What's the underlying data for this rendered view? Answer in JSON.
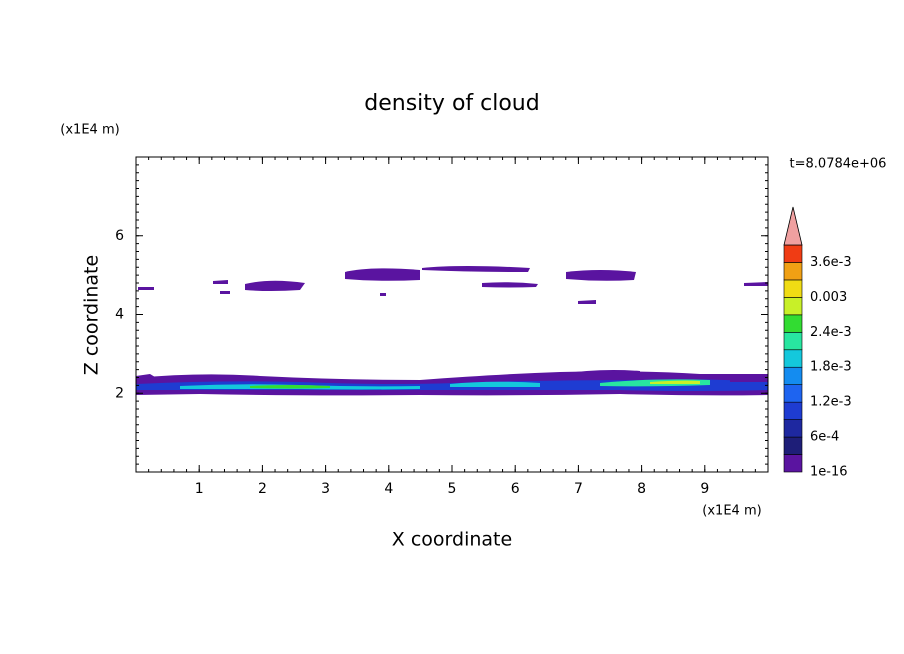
{
  "chart_data": {
    "type": "contour",
    "title": "density of cloud",
    "x_label": "X coordinate",
    "y_label": "Z coordinate",
    "x_unit": "(x1E4 m)",
    "y_unit": "(x1E4 m)",
    "time_label": "t=8.0784e+06",
    "xlim": [
      0,
      10
    ],
    "ylim": [
      0,
      8
    ],
    "xticks": [
      1,
      2,
      3,
      4,
      5,
      6,
      7,
      8,
      9
    ],
    "yticks": [
      2,
      4,
      6
    ],
    "colorbar": {
      "levels": [
        1e-16,
        0.0003,
        0.0006,
        0.0009,
        0.0012,
        0.0015,
        0.0018,
        0.0021,
        0.0024,
        0.0027,
        0.003,
        0.0033,
        0.0036,
        0.0039
      ],
      "colors": [
        "#5a14a0",
        "#1e1e78",
        "#1e28a0",
        "#1e3cd2",
        "#1e64f0",
        "#148cf0",
        "#14c8dc",
        "#28e6a0",
        "#32dc32",
        "#c8f028",
        "#f0dc14",
        "#f0a014",
        "#f03c14"
      ],
      "extend_color": "#f0a0a0",
      "ticks": [
        1e-16,
        {
          "value": 0.0006,
          "label": "6e-4"
        },
        {
          "value": 0.0012,
          "label": "1.2e-3"
        },
        {
          "value": 0.0018,
          "label": "1.8e-3"
        },
        {
          "value": 0.0024,
          "label": "2.4e-3"
        },
        0.003,
        {
          "value": 0.0036,
          "label": "3.6e-3"
        }
      ]
    }
  }
}
